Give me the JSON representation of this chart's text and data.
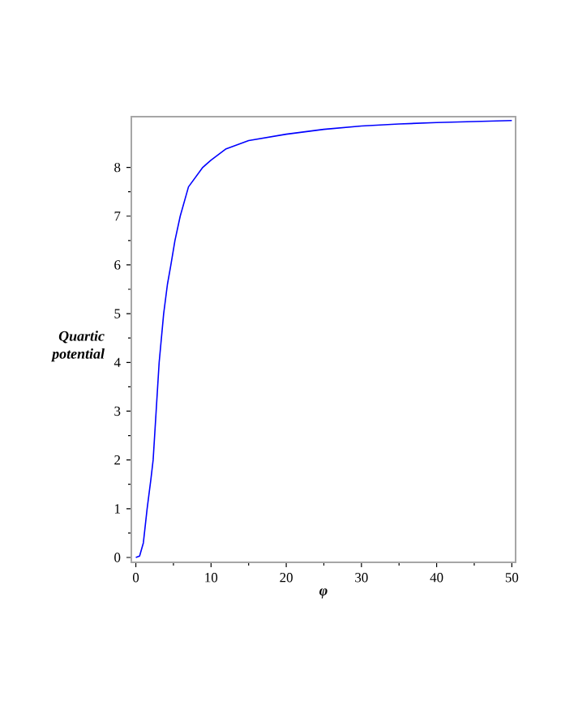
{
  "chart_data": {
    "type": "line",
    "xlabel": "φ",
    "ylabel": "Quartic potential",
    "xlim": [
      -0.6,
      50.5
    ],
    "ylim": [
      -0.1,
      9.04
    ],
    "xticks": [
      0,
      10,
      20,
      30,
      40,
      50
    ],
    "yticks": [
      0,
      1,
      2,
      3,
      4,
      5,
      6,
      7,
      8
    ],
    "grid": false,
    "line_style": "solid",
    "marker": "none",
    "series": [
      {
        "color": "#0000ff",
        "x": [
          0,
          0.5,
          1.0,
          1.5,
          2.0,
          2.3,
          2.7,
          3.1,
          3.7,
          4.2,
          4.66,
          5.2,
          5.9,
          7,
          8.9,
          10,
          12,
          15,
          20,
          25,
          30,
          35,
          40,
          45,
          50
        ],
        "values": [
          0,
          0.03,
          0.3,
          1.0,
          1.6,
          2.0,
          3.0,
          4.0,
          5.0,
          5.6,
          6.0,
          6.5,
          7.0,
          7.6,
          8.0,
          8.15,
          8.38,
          8.55,
          8.68,
          8.78,
          8.85,
          8.89,
          8.92,
          8.94,
          8.96
        ]
      }
    ]
  }
}
